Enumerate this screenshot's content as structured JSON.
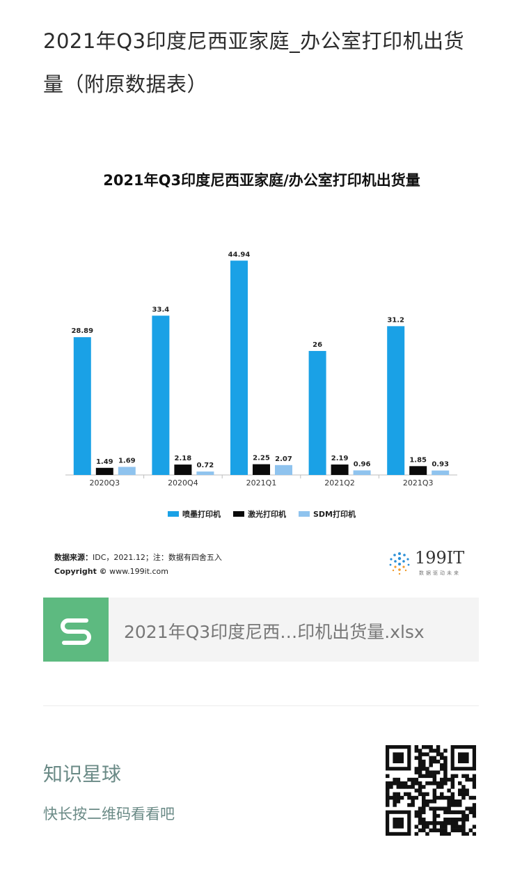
{
  "post": {
    "title": "2021年Q3印度尼西亚家庭_办公室打印机出货量（附原数据表）"
  },
  "colors": {
    "inkjet": "#1aa1e6",
    "laser": "#0a0a0a",
    "sdm": "#8fc3ee",
    "file_icon": "#5dba80",
    "planet_text": "#6a8a86"
  },
  "chart_data": {
    "type": "bar",
    "title": "2021年Q3印度尼西亚家庭/办公室打印机出货量",
    "categories": [
      "2020Q3",
      "2020Q4",
      "2021Q1",
      "2021Q2",
      "2021Q3"
    ],
    "series": [
      {
        "name": "喷墨打印机",
        "values": [
          28.89,
          33.4,
          44.94,
          26,
          31.2
        ]
      },
      {
        "name": "激光打印机",
        "values": [
          1.49,
          2.18,
          2.25,
          2.19,
          1.85
        ]
      },
      {
        "name": "SDM打印机",
        "values": [
          1.69,
          0.72,
          2.07,
          0.96,
          0.93
        ]
      }
    ],
    "data_labels": [
      [
        "28.89",
        "33.4",
        "44.94",
        "26",
        "31.2"
      ],
      [
        "1.49",
        "2.18",
        "2.25",
        "2.19",
        "1.85"
      ],
      [
        "1.69",
        "0.72",
        "2.07",
        "0.96",
        "0.93"
      ]
    ],
    "ylim": [
      0,
      46
    ],
    "grid": false,
    "legend_position": "bottom",
    "source_label": "数据来源：",
    "source_text": "IDC，2021.12；注：数据有四舍五入",
    "copyright": "Copyright ©",
    "site": "www.199it.com"
  },
  "logo": {
    "text": "199IT",
    "tagline": "数据驱动未来",
    "icon": "dots-sphere-icon"
  },
  "attachment": {
    "icon": "spreadsheet-s-icon",
    "file_name": "2021年Q3印度尼西…印机出货量.xlsx"
  },
  "planet": {
    "title": "知识星球",
    "subtitle": "快长按二维码看看吧",
    "qr_icon": "qr-code-icon"
  }
}
